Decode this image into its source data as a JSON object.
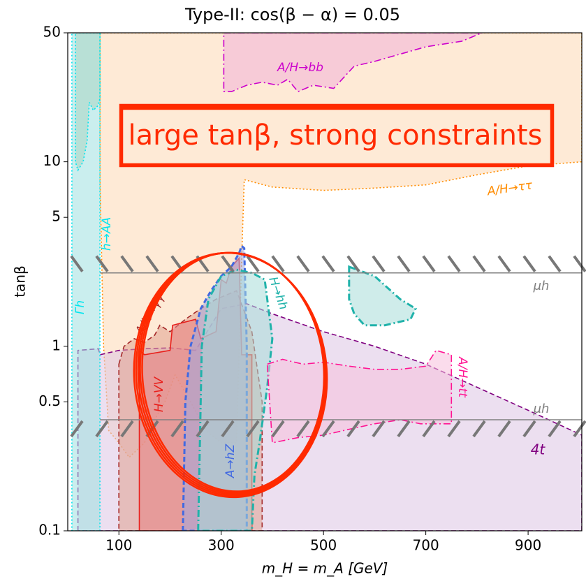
{
  "chart_data": {
    "type": "region",
    "title": "Type-II: cos(β − α) = 0.05",
    "xlabel": "m_H = m_A [GeV]",
    "ylabel": "tanβ",
    "xlim": [
      0,
      1005
    ],
    "ylim": [
      0.1,
      50
    ],
    "yscale": "log",
    "xticks": [
      100,
      300,
      500,
      700,
      900
    ],
    "yticks": [
      0.1,
      0.5,
      1,
      5,
      10,
      50
    ],
    "annotations": [
      "large tanβ, strong constraints"
    ],
    "series": [
      {
        "name": "A/H→ττ",
        "color": "#ff8c00",
        "fill": "#fdd9b5",
        "style": "dotted",
        "x": [
          63,
          1005,
          1005,
          900,
          800,
          700,
          600,
          500,
          400,
          345,
          340,
          330,
          300,
          270,
          240,
          210,
          190,
          170,
          150,
          120,
          100,
          80,
          70,
          63
        ],
        "y": [
          50,
          50,
          10,
          9.5,
          8.5,
          7.5,
          7.2,
          7,
          7.3,
          8,
          3,
          0.3,
          0.3,
          0.35,
          0.5,
          0.7,
          0.5,
          0.4,
          0.3,
          0.25,
          0.3,
          0.35,
          1,
          8
        ]
      },
      {
        "name": "4t",
        "color": "#800080",
        "fill": "#dcc4e3",
        "style": "dashed",
        "x": [
          20,
          20,
          60,
          63,
          100,
          150,
          200,
          250,
          300,
          350,
          400,
          500,
          600,
          700,
          800,
          900,
          1005,
          1005
        ],
        "y": [
          0.1,
          0.95,
          0.97,
          0.9,
          0.95,
          0.97,
          0.98,
          0.95,
          1.6,
          1.7,
          1.5,
          1.2,
          1.0,
          0.8,
          0.6,
          0.45,
          0.33,
          0.1
        ]
      },
      {
        "name": "A/H→bb",
        "color": "#cc00cc",
        "fill": "#f0b0d8",
        "style": "dashdot",
        "x": [
          305,
          810,
          770,
          700,
          600,
          560,
          520,
          480,
          450,
          430,
          410,
          380,
          350,
          320,
          305
        ],
        "y": [
          50,
          50,
          45,
          42,
          35,
          33,
          25,
          26,
          24,
          28,
          26,
          27,
          26,
          24,
          24
        ]
      },
      {
        "name": "A/H→γγ",
        "color": "#a52a2a",
        "fill": "#e0a090",
        "style": "dashed",
        "x": [
          100,
          110,
          130,
          150,
          170,
          180,
          200,
          230,
          260,
          290,
          330,
          360,
          380,
          380,
          100
        ],
        "y": [
          0.8,
          1.0,
          1.1,
          1.05,
          1.15,
          1.3,
          1.2,
          1.4,
          1.6,
          1.8,
          2.0,
          1.2,
          0.5,
          0.1,
          0.1
        ]
      },
      {
        "name": "H→VV",
        "color": "#e8201c",
        "fill": "#e88080",
        "style": "solid",
        "x": [
          140,
          140,
          150,
          200,
          205,
          250,
          260,
          290,
          300,
          310,
          320,
          335,
          340,
          360,
          360
        ],
        "y": [
          0.1,
          0.95,
          0.9,
          0.95,
          1.3,
          1.4,
          1.1,
          1.2,
          2.3,
          2.2,
          2.7,
          3.0,
          0.9,
          0.9,
          0.1
        ]
      },
      {
        "name": "A→hZ",
        "color": "#4169e1",
        "fill": "#a0a8e0",
        "style": "dashed",
        "x": [
          225,
          230,
          240,
          260,
          280,
          300,
          320,
          335,
          340,
          345,
          350,
          350
        ],
        "y": [
          0.1,
          0.5,
          1.0,
          1.6,
          2.0,
          2.4,
          2.7,
          3.2,
          3.5,
          3.4,
          1.0,
          0.1
        ]
      },
      {
        "name": "H→hh",
        "color": "#20b2aa",
        "fill": "#a8ddd8",
        "style": "dashdot",
        "x": [
          255,
          262,
          275,
          300,
          330,
          360,
          385,
          400,
          390,
          375,
          365,
          360,
          null,
          550,
          600,
          650,
          680,
          670,
          620,
          580,
          560,
          550
        ],
        "y": [
          0.1,
          1.0,
          1.8,
          2.4,
          2.6,
          2.5,
          2.3,
          1.1,
          0.6,
          0.3,
          0.2,
          0.1,
          null,
          2.7,
          2.4,
          1.8,
          1.6,
          1.4,
          1.3,
          1.3,
          1.5,
          1.8
        ]
      },
      {
        "name": "A/H→tt",
        "color": "#ff1493",
        "fill": "#f8c0dc",
        "style": "dashdot",
        "x": [
          390,
          420,
          460,
          500,
          550,
          600,
          650,
          700,
          720,
          750,
          750,
          690,
          650,
          600,
          560,
          500,
          450,
          400
        ],
        "y": [
          0.8,
          0.85,
          0.8,
          0.82,
          0.78,
          0.75,
          0.75,
          0.78,
          0.95,
          0.9,
          0.38,
          0.38,
          0.4,
          0.38,
          0.36,
          0.33,
          0.32,
          0.3
        ]
      },
      {
        "name": "Γh",
        "color": "#00e5ee",
        "fill": "#9fe0e0",
        "style": "dotted",
        "x": [
          8,
          63,
          63,
          8
        ],
        "y": [
          0.1,
          0.1,
          50,
          50
        ]
      },
      {
        "name": "h→AA",
        "color": "#00e5ee",
        "fill": "#a9d6c3",
        "style": "dotted",
        "x": [
          15,
          63,
          63,
          58,
          50,
          42,
          38,
          30,
          20,
          15
        ],
        "y": [
          50,
          50,
          22,
          20,
          19,
          21,
          13,
          10,
          9,
          10
        ]
      },
      {
        "name": "μh",
        "color": "#808080",
        "style": "line",
        "x": [
          63,
          1005
        ],
        "y": [
          2.5,
          2.5
        ]
      },
      {
        "name": "μh",
        "color": "#808080",
        "style": "line",
        "x": [
          63,
          1005
        ],
        "y": [
          0.4,
          0.4
        ]
      }
    ]
  }
}
